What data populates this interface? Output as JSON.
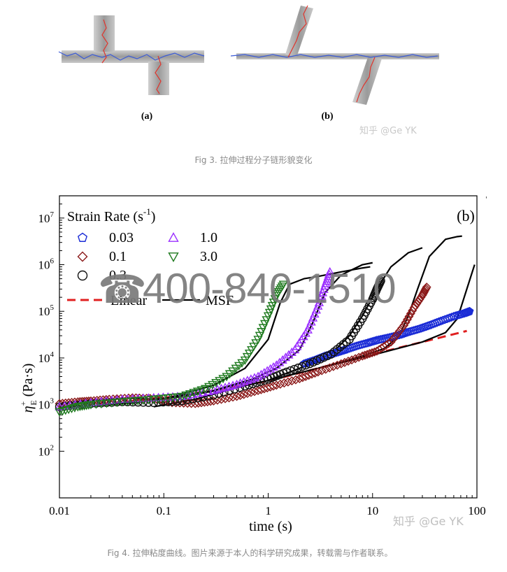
{
  "fig3": {
    "label_a": "(a)",
    "label_b": "(b)",
    "caption": "Fig 3. 拉伸过程分子链形貌变化",
    "watermark": "知乎 @Ge YK"
  },
  "overlay": {
    "phone_icon": "phone-icon",
    "phone_text": "400-840-1510"
  },
  "fig4": {
    "caption": "Fig 4. 拉伸粘度曲线。图片来源于本人的科学研究成果，转载需与作者联系。",
    "watermark": "知乎 @Ge YK",
    "corner_mark": "'"
  },
  "chart_data": {
    "type": "scatter",
    "panel_label": "(b)",
    "xlabel": "time (s)",
    "ylabel": "η+E (Pa·s)",
    "ylabel_main": "η",
    "ylabel_sup": "+",
    "ylabel_sub": "E",
    "ylabel_unit": " (Pa·s)",
    "xscale": "log",
    "yscale": "log",
    "xlim": [
      0.01,
      100
    ],
    "ylim": [
      10,
      30000000
    ],
    "x_ticks": [
      {
        "value": 0.01,
        "label": "0.01"
      },
      {
        "value": 0.1,
        "label": "0.1"
      },
      {
        "value": 1,
        "label": "1"
      },
      {
        "value": 10,
        "label": "10"
      },
      {
        "value": 100,
        "label": "100"
      }
    ],
    "y_ticks": [
      {
        "value": 100,
        "base": "10",
        "exp": "2"
      },
      {
        "value": 1000,
        "base": "10",
        "exp": "3"
      },
      {
        "value": 10000,
        "base": "10",
        "exp": "4"
      },
      {
        "value": 100000,
        "base": "10",
        "exp": "5"
      },
      {
        "value": 1000000,
        "base": "10",
        "exp": "6"
      },
      {
        "value": 10000000,
        "base": "10",
        "exp": "7"
      }
    ],
    "legend_title": "Strain  Rate (s",
    "legend_title_sup": "-1",
    "legend_title_end": ")",
    "legend_position": "top-left",
    "grid": false,
    "series": [
      {
        "name": "0.03",
        "marker": "pentagon",
        "color": "#1a2bd6",
        "values": [
          [
            2.2,
            7500
          ],
          [
            2.8,
            9000
          ],
          [
            3.5,
            11000
          ],
          [
            4.5,
            13000
          ],
          [
            5.5,
            15000
          ],
          [
            7,
            18000
          ],
          [
            9,
            21000
          ],
          [
            11,
            24000
          ],
          [
            14,
            27000
          ],
          [
            18,
            31000
          ],
          [
            22,
            36000
          ],
          [
            28,
            42000
          ],
          [
            35,
            50000
          ],
          [
            45,
            62000
          ],
          [
            60,
            78000
          ],
          [
            75,
            90000
          ],
          [
            85,
            100000
          ]
        ]
      },
      {
        "name": "0.1",
        "marker": "diamond",
        "color": "#8b1a1a",
        "values": [
          [
            0.01,
            1050
          ],
          [
            0.015,
            1150
          ],
          [
            0.02,
            1200
          ],
          [
            0.03,
            1300
          ],
          [
            0.05,
            1400
          ],
          [
            0.08,
            1350
          ],
          [
            0.12,
            1100
          ],
          [
            0.2,
            1050
          ],
          [
            0.3,
            1200
          ],
          [
            0.5,
            1500
          ],
          [
            0.8,
            2000
          ],
          [
            1.2,
            2600
          ],
          [
            2,
            3600
          ],
          [
            3,
            5000
          ],
          [
            5,
            7500
          ],
          [
            8,
            11000
          ],
          [
            11,
            14000
          ],
          [
            15,
            22000
          ],
          [
            20,
            50000
          ],
          [
            25,
            120000
          ],
          [
            30,
            220000
          ],
          [
            33,
            330000
          ]
        ]
      },
      {
        "name": "0.3",
        "marker": "circle",
        "color": "#111111",
        "values": [
          [
            0.01,
            900
          ],
          [
            0.02,
            1050
          ],
          [
            0.04,
            1150
          ],
          [
            0.08,
            1100
          ],
          [
            0.15,
            1200
          ],
          [
            0.3,
            1600
          ],
          [
            0.6,
            2500
          ],
          [
            1,
            3500
          ],
          [
            1.5,
            5000
          ],
          [
            2.5,
            7500
          ],
          [
            4,
            12000
          ],
          [
            6,
            25000
          ],
          [
            8,
            70000
          ],
          [
            10,
            180000
          ],
          [
            11,
            300000
          ],
          [
            12,
            450000
          ]
        ]
      },
      {
        "name": "1.0",
        "marker": "triangle-up",
        "color": "#9b30ff",
        "values": [
          [
            0.01,
            900
          ],
          [
            0.02,
            1100
          ],
          [
            0.04,
            1300
          ],
          [
            0.08,
            1400
          ],
          [
            0.15,
            1500
          ],
          [
            0.3,
            2000
          ],
          [
            0.5,
            2700
          ],
          [
            0.8,
            4000
          ],
          [
            1.2,
            7000
          ],
          [
            1.8,
            15000
          ],
          [
            2.4,
            40000
          ],
          [
            3,
            130000
          ],
          [
            3.5,
            350000
          ],
          [
            3.9,
            700000
          ]
        ]
      },
      {
        "name": "3.0",
        "marker": "triangle-down",
        "color": "#1f7a1f",
        "values": [
          [
            0.01,
            700
          ],
          [
            0.015,
            900
          ],
          [
            0.02,
            1000
          ],
          [
            0.04,
            1150
          ],
          [
            0.08,
            1300
          ],
          [
            0.15,
            1500
          ],
          [
            0.25,
            2200
          ],
          [
            0.4,
            4000
          ],
          [
            0.6,
            9000
          ],
          [
            0.8,
            25000
          ],
          [
            1,
            80000
          ],
          [
            1.2,
            220000
          ],
          [
            1.4,
            380000
          ]
        ]
      }
    ],
    "lines": [
      {
        "name": "Linear",
        "style": "dashed",
        "color": "#e02020",
        "values": [
          [
            0.01,
            850
          ],
          [
            0.03,
            1050
          ],
          [
            0.1,
            1400
          ],
          [
            0.3,
            2000
          ],
          [
            1,
            3200
          ],
          [
            3,
            6000
          ],
          [
            10,
            12000
          ],
          [
            30,
            22000
          ],
          [
            80,
            38000
          ]
        ]
      },
      {
        "name": "MSF",
        "style": "solid",
        "color": "#000000",
        "curves": [
          [
            [
              0.01,
              850
            ],
            [
              0.05,
              1100
            ],
            [
              0.1,
              1300
            ],
            [
              0.3,
              2600
            ],
            [
              0.6,
              6000
            ],
            [
              1,
              25000
            ],
            [
              1.3,
              150000
            ],
            [
              1.6,
              380000
            ],
            [
              2.2,
              500000
            ],
            [
              3,
              560000
            ],
            [
              5,
              700000
            ],
            [
              8,
              850000
            ],
            [
              9.5,
              900000
            ]
          ],
          [
            [
              0.01,
              850
            ],
            [
              0.05,
              1100
            ],
            [
              0.1,
              1350
            ],
            [
              0.3,
              2000
            ],
            [
              0.7,
              3500
            ],
            [
              1.2,
              6000
            ],
            [
              2,
              15000
            ],
            [
              2.7,
              60000
            ],
            [
              3.5,
              250000
            ],
            [
              5,
              600000
            ],
            [
              8,
              1000000
            ],
            [
              10,
              1100000
            ]
          ],
          [
            [
              0.08,
              900
            ],
            [
              0.2,
              1300
            ],
            [
              0.5,
              2300
            ],
            [
              1,
              3300
            ],
            [
              2,
              6000
            ],
            [
              4,
              12000
            ],
            [
              6,
              30000
            ],
            [
              8,
              80000
            ],
            [
              11,
              300000
            ],
            [
              15,
              900000
            ],
            [
              22,
              1800000
            ],
            [
              30,
              2300000
            ]
          ],
          [
            [
              1,
              3300
            ],
            [
              3,
              6000
            ],
            [
              8,
              11000
            ],
            [
              13,
              16000
            ],
            [
              18,
              30000
            ],
            [
              22,
              80000
            ],
            [
              27,
              300000
            ],
            [
              35,
              1500000
            ],
            [
              50,
              3500000
            ],
            [
              65,
              4000000
            ],
            [
              72,
              4100000
            ]
          ],
          [
            [
              3,
              6000
            ],
            [
              10,
              11500
            ],
            [
              30,
              22000
            ],
            [
              50,
              35000
            ],
            [
              65,
              70000
            ],
            [
              80,
              300000
            ],
            [
              95,
              1000000
            ]
          ]
        ]
      }
    ]
  }
}
